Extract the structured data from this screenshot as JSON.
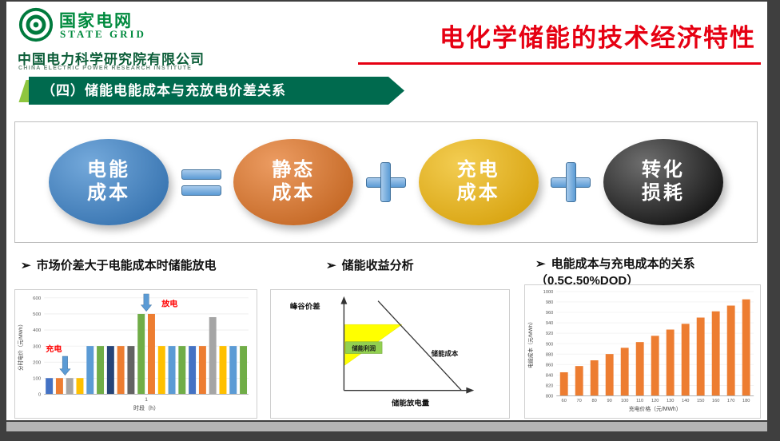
{
  "header": {
    "brand": "国家电网",
    "brand_en": "STATE GRID",
    "org": "中国电力科学研究院有限公司",
    "org_en": "CHINA ELECTRIC POWER RESEARCH INSTITUTE",
    "title": "电化学储能的技术经济特性",
    "title_color": "#e60012",
    "brand_color": "#008a3e"
  },
  "section": {
    "banner_text": "（四）储能电能成本与充放电价差关系",
    "banner_color": "#006a4e"
  },
  "equation": {
    "terms": [
      {
        "line1": "电能",
        "line2": "成本",
        "color_light": "#74a9db",
        "color_dark": "#3a76b2"
      },
      {
        "line1": "静态",
        "line2": "成本",
        "color_light": "#ec9c62",
        "color_dark": "#c66a27"
      },
      {
        "line1": "充电",
        "line2": "成本",
        "color_light": "#f3cd52",
        "color_dark": "#d9a513"
      },
      {
        "line1": "转化",
        "line2": "损耗",
        "color_light": "#6f6f6f",
        "color_dark": "#181818"
      }
    ],
    "operators": [
      "=",
      "+",
      "+"
    ],
    "operator_color": "#5b9bd5"
  },
  "bullets": [
    {
      "marker": "➢",
      "text": "市场价差大于电能成本时储能放电"
    },
    {
      "marker": "➢",
      "text": "储能收益分析"
    },
    {
      "marker": "➢",
      "text": "电能成本与充电成本的关系（0.5C,50%DOD）"
    }
  ],
  "chart_data": [
    {
      "type": "bar",
      "title": "市场价差大于电能成本时储能放电",
      "ylabel": "分时电价（元/MWh）",
      "xlabel": "时段（h）",
      "x_tick": "1",
      "ylim": [
        0,
        600
      ],
      "yticks": [
        0,
        100,
        200,
        300,
        400,
        500,
        600
      ],
      "values": [
        100,
        100,
        100,
        100,
        300,
        300,
        300,
        300,
        300,
        500,
        500,
        300,
        300,
        300,
        300,
        300,
        480,
        300,
        300,
        300
      ],
      "colors": [
        "#4472C4",
        "#ED7D31",
        "#A5A5A5",
        "#FFC000",
        "#5B9BD5",
        "#70AD47",
        "#264478",
        "#ED7D31",
        "#636363",
        "#70AD47",
        "#ED7D31",
        "#FFC000",
        "#5B9BD5",
        "#70AD47",
        "#4472C4",
        "#ED7D31",
        "#A5A5A5",
        "#FFC000",
        "#5B9BD5",
        "#70AD47"
      ],
      "annotations": [
        {
          "text": "充电",
          "color": "#ff0000",
          "arrow_color": "#5b9bd5"
        },
        {
          "text": "放电",
          "color": "#ff0000",
          "arrow_color": "#5b9bd5"
        }
      ]
    },
    {
      "type": "diagram",
      "title": "储能收益分析",
      "ylabel": "峰谷价差",
      "xlabel": "储能放电量",
      "line_label": "储能成本",
      "region_label": "储能利润",
      "region_color": "#ffff00",
      "label_box_color": "#92d050"
    },
    {
      "type": "bar",
      "title": "电能成本与充电成本的关系（0.5C,50%DOD）",
      "ylabel": "电能成本（元/MWh）",
      "xlabel": "充电价格（元/MWh）",
      "ylim": [
        800,
        1000
      ],
      "yticks": [
        800,
        820,
        840,
        860,
        880,
        900,
        920,
        940,
        960,
        980,
        1000
      ],
      "categories": [
        60,
        70,
        80,
        90,
        100,
        110,
        120,
        130,
        140,
        150,
        160,
        170,
        180
      ],
      "values": [
        845,
        857,
        868,
        880,
        892,
        903,
        915,
        927,
        938,
        950,
        962,
        973,
        985
      ],
      "color": "#ED7D31"
    }
  ]
}
